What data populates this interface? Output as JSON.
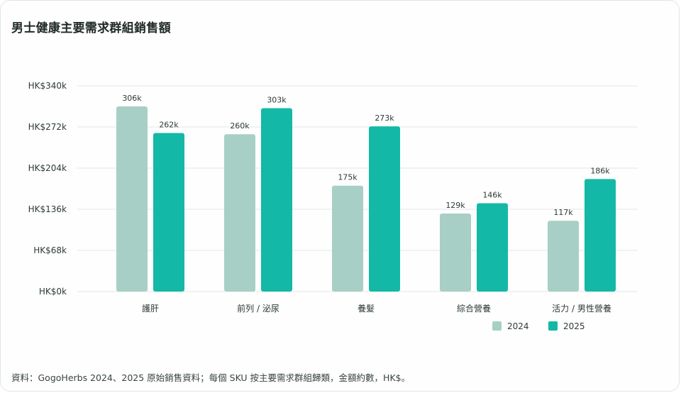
{
  "title": "男士健康主要需求群組銷售額",
  "source_note": "資料：GogoHerbs 2024、2025 原始銷售資料；每個 SKU 按主要需求群組歸類，金額約數，HK$。",
  "colors": {
    "s2024": "#a8cfc5",
    "s2025": "#14b8a6",
    "grid": "#e4e8e6"
  },
  "chart_data": {
    "type": "bar",
    "categories": [
      "護肝",
      "前列 / 泌尿",
      "養髮",
      "綜合營養",
      "活力 / 男性營養"
    ],
    "series": [
      {
        "name": "2024",
        "values": [
          306,
          260,
          175,
          129,
          117
        ],
        "labels": [
          "306k",
          "260k",
          "175k",
          "129k",
          "117k"
        ]
      },
      {
        "name": "2025",
        "values": [
          262,
          303,
          273,
          146,
          186
        ],
        "labels": [
          "262k",
          "303k",
          "273k",
          "146k",
          "186k"
        ]
      }
    ],
    "ylim": [
      0,
      340
    ],
    "yticks": [
      "HK$0k",
      "HK$68k",
      "HK$136k",
      "HK$204k",
      "HK$272k",
      "HK$340k"
    ],
    "grid": true,
    "legend": "bottom-right"
  }
}
